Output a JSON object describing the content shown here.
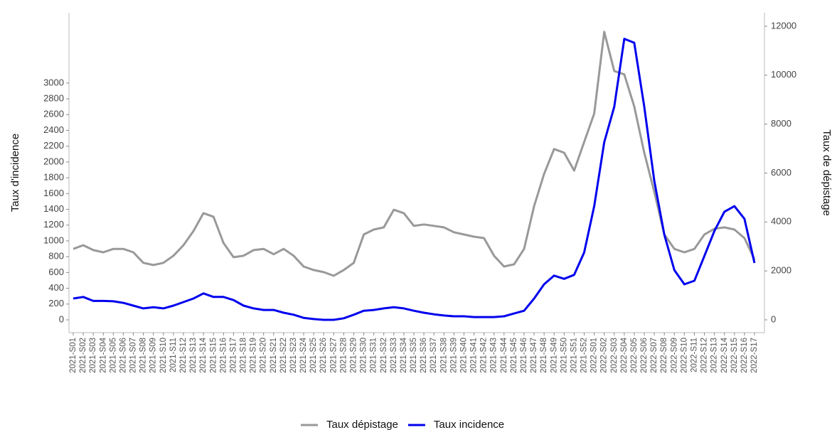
{
  "chart_data": {
    "type": "line",
    "categories": [
      "2021-S01",
      "2021-S02",
      "2021-S03",
      "2021-S04",
      "2021-S05",
      "2021-S06",
      "2021-S07",
      "2021-S08",
      "2021-S09",
      "2021-S10",
      "2021-S11",
      "2021-S12",
      "2021-S13",
      "2021-S14",
      "2021-S15",
      "2021-S16",
      "2021-S17",
      "2021-S18",
      "2021-S19",
      "2021-S20",
      "2021-S21",
      "2021-S22",
      "2021-S23",
      "2021-S24",
      "2021-S25",
      "2021-S26",
      "2021-S27",
      "2021-S28",
      "2021-S29",
      "2021-S30",
      "2021-S31",
      "2021-S32",
      "2021-S33",
      "2021-S34",
      "2021-S35",
      "2021-S36",
      "2021-S37",
      "2021-S38",
      "2021-S39",
      "2021-S40",
      "2021-S41",
      "2021-S42",
      "2021-S43",
      "2021-S44",
      "2021-S45",
      "2021-S46",
      "2021-S47",
      "2021-S48",
      "2021-S49",
      "2021-S50",
      "2021-S51",
      "2021-S52",
      "2022-S01",
      "2022-S02",
      "2022-S03",
      "2022-S04",
      "2022-S05",
      "2022-S06",
      "2022-S07",
      "2022-S08",
      "2022-S09",
      "2022-S10",
      "2022-S11",
      "2022-S12",
      "2022-S13",
      "2022-S14",
      "2022-S15",
      "2022-S16",
      "2022-S17"
    ],
    "series": [
      {
        "name": "Taux dépistage",
        "color": "#999999",
        "axis": "y2",
        "values": [
          2900,
          3050,
          2850,
          2760,
          2900,
          2900,
          2760,
          2330,
          2240,
          2330,
          2620,
          3050,
          3630,
          4360,
          4215,
          3140,
          2560,
          2620,
          2850,
          2900,
          2680,
          2900,
          2620,
          2180,
          2035,
          1950,
          1800,
          2035,
          2330,
          3490,
          3690,
          3780,
          4500,
          4360,
          3840,
          3900,
          3840,
          3780,
          3580,
          3490,
          3400,
          3340,
          2620,
          2180,
          2270,
          2900,
          4650,
          5960,
          6980,
          6830,
          6100,
          7270,
          8430,
          11770,
          10170,
          10030,
          8720,
          6830,
          5230,
          3490,
          2900,
          2760,
          2900,
          3490,
          3720,
          3780,
          3690,
          3340,
          2470
        ]
      },
      {
        "name": "Taux incidence",
        "color": "#0000ee",
        "values": [
          270,
          290,
          240,
          240,
          235,
          215,
          180,
          145,
          160,
          145,
          180,
          225,
          270,
          335,
          290,
          290,
          250,
          180,
          145,
          125,
          125,
          90,
          65,
          25,
          10,
          0,
          0,
          20,
          65,
          115,
          125,
          145,
          160,
          145,
          115,
          90,
          70,
          55,
          45,
          45,
          35,
          35,
          35,
          45,
          80,
          115,
          270,
          450,
          560,
          520,
          570,
          855,
          1440,
          2250,
          2700,
          3560,
          3510,
          2700,
          1760,
          1080,
          630,
          450,
          495,
          810,
          1125,
          1370,
          1440,
          1280,
          720
        ]
      }
    ],
    "y_label": "Taux d'incidence",
    "y2_label": "Taux de dépistage",
    "ylim": [
      -162,
      3890
    ],
    "yticks": [
      0,
      200,
      400,
      600,
      800,
      1000,
      1200,
      1400,
      1600,
      1800,
      2000,
      2200,
      2400,
      2600,
      2800,
      3000
    ],
    "y2lim": [
      -523,
      12550
    ],
    "y2ticks": [
      0,
      2000,
      4000,
      6000,
      8000,
      10000,
      12000
    ],
    "legend": "bottom"
  }
}
